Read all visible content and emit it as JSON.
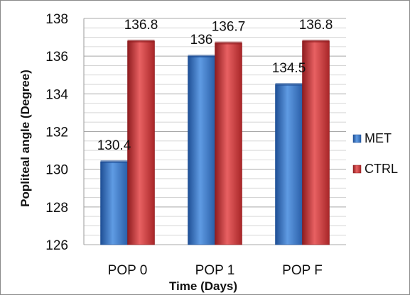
{
  "chart_data": {
    "type": "bar",
    "title": "",
    "xlabel": "Time (Days)",
    "ylabel": "Popliteal angle  (Degree)",
    "categories": [
      "POP 0",
      "POP 1",
      "POP F"
    ],
    "series": [
      {
        "name": "MET",
        "values": [
          130.4,
          136,
          134.5
        ],
        "labels": [
          "130.4",
          "136",
          "134.5"
        ],
        "color": "#3d7cc9"
      },
      {
        "name": "CTRL",
        "values": [
          136.8,
          136.7,
          136.8
        ],
        "labels": [
          "136.8",
          "136.7",
          "136.8"
        ],
        "color": "#c8393a"
      }
    ],
    "ylim": [
      126,
      138
    ],
    "yticks": [
      126,
      128,
      130,
      132,
      134,
      136,
      138
    ],
    "grid": true,
    "legend": "right"
  }
}
